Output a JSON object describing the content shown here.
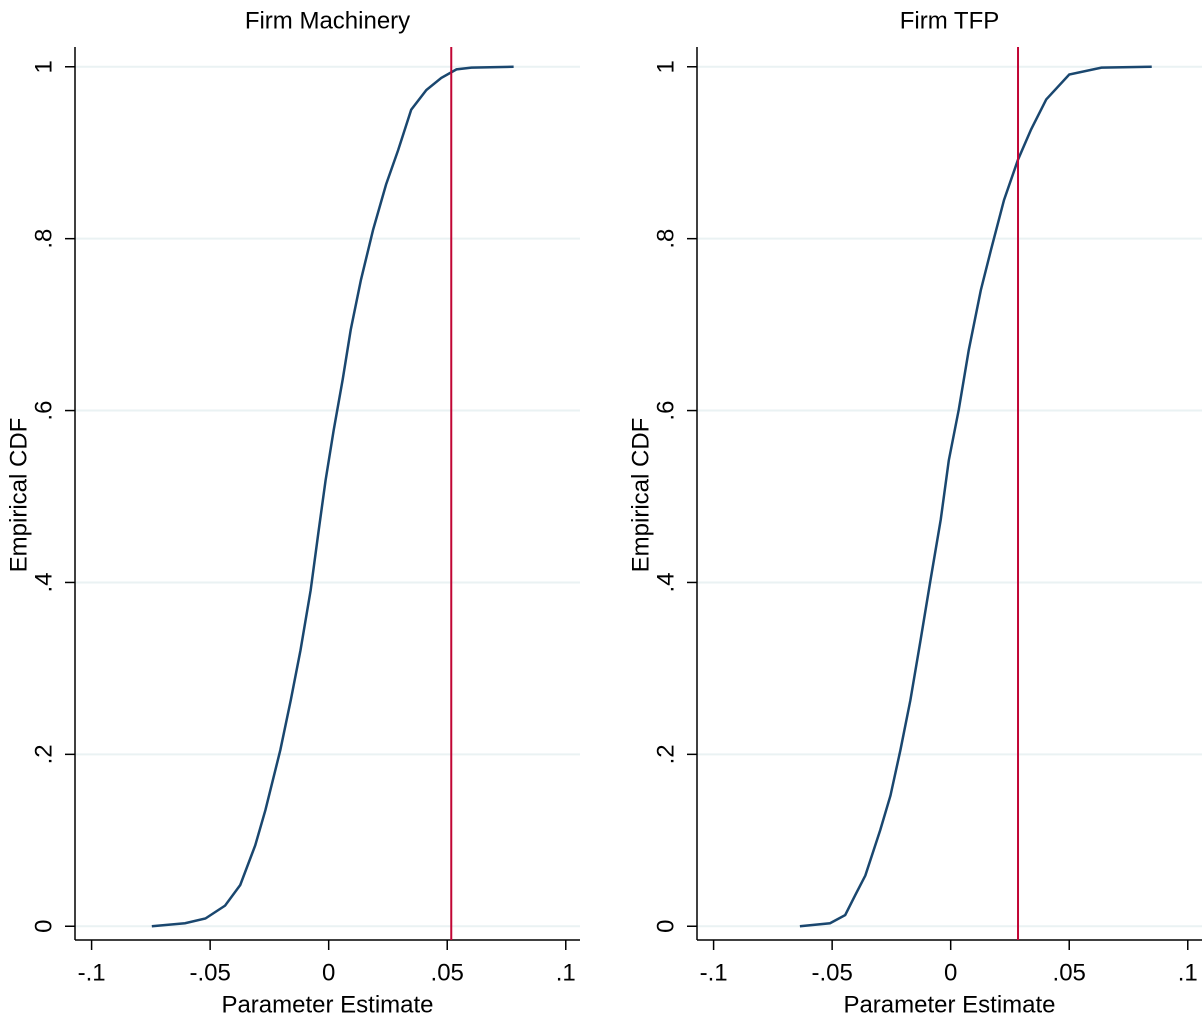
{
  "chart_data": [
    {
      "type": "line",
      "title": "Firm Machinery",
      "xlabel": "Parameter Estimate",
      "ylabel": "Empirical CDF",
      "x": [
        -0.0746,
        -0.0606,
        -0.052,
        -0.0437,
        -0.0373,
        -0.031,
        -0.0267,
        -0.0204,
        -0.016,
        -0.0119,
        -0.0076,
        -0.0042,
        -0.0013,
        0.0021,
        0.0059,
        0.0093,
        0.0136,
        0.0187,
        0.0242,
        0.0293,
        0.0348,
        0.0412,
        0.0475,
        0.0539,
        0.0602,
        0.078
      ],
      "values": [
        0,
        0.0035,
        0.009,
        0.024,
        0.048,
        0.094,
        0.135,
        0.205,
        0.263,
        0.321,
        0.391,
        0.461,
        0.519,
        0.577,
        0.636,
        0.694,
        0.752,
        0.81,
        0.863,
        0.903,
        0.95,
        0.973,
        0.987,
        0.997,
        0.999,
        1
      ],
      "color": "#1a476f",
      "vline": {
        "x": 0.0517,
        "color": "#c10534"
      },
      "xlim": [
        -0.107,
        0.106
      ],
      "ylim": [
        -0.016,
        1.023
      ],
      "xticks": [
        {
          "value": -0.1,
          "label": "-.1"
        },
        {
          "value": -0.05,
          "label": "-.05"
        },
        0,
        {
          "value": 0.05,
          "label": ".05"
        },
        {
          "value": 0.1,
          "label": ".1"
        }
      ],
      "yticks": [
        0,
        {
          "value": 0.2,
          "label": ".2"
        },
        {
          "value": 0.4,
          "label": ".4"
        },
        {
          "value": 0.6,
          "label": ".6"
        },
        {
          "value": 0.8,
          "label": ".8"
        },
        1
      ],
      "grid": true
    },
    {
      "type": "line",
      "title": "Firm TFP",
      "xlabel": "Parameter Estimate",
      "ylabel": "Empirical CDF",
      "x": [
        -0.0636,
        -0.0509,
        -0.0445,
        -0.0403,
        -0.036,
        -0.0297,
        -0.0254,
        -0.0212,
        -0.017,
        -0.0127,
        -0.0085,
        -0.0042,
        -0.0008,
        0.0034,
        0.0076,
        0.0127,
        0.017,
        0.0225,
        0.0284,
        0.0339,
        0.0403,
        0.05,
        0.0636,
        0.0848
      ],
      "values": [
        0,
        0.0035,
        0.013,
        0.036,
        0.059,
        0.112,
        0.152,
        0.205,
        0.263,
        0.333,
        0.403,
        0.473,
        0.542,
        0.601,
        0.67,
        0.74,
        0.787,
        0.845,
        0.892,
        0.927,
        0.962,
        0.991,
        0.999,
        1
      ],
      "color": "#1a476f",
      "vline": {
        "x": 0.0284,
        "color": "#c10534"
      },
      "xlim": [
        -0.107,
        0.106
      ],
      "ylim": [
        -0.016,
        1.023
      ],
      "xticks": [
        {
          "value": -0.1,
          "label": "-.1"
        },
        {
          "value": -0.05,
          "label": "-.05"
        },
        0,
        {
          "value": 0.05,
          "label": ".05"
        },
        {
          "value": 0.1,
          "label": ".1"
        }
      ],
      "yticks": [
        0,
        {
          "value": 0.2,
          "label": ".2"
        },
        {
          "value": 0.4,
          "label": ".4"
        },
        {
          "value": 0.6,
          "label": ".6"
        },
        {
          "value": 0.8,
          "label": ".8"
        },
        1
      ],
      "grid": true
    }
  ]
}
